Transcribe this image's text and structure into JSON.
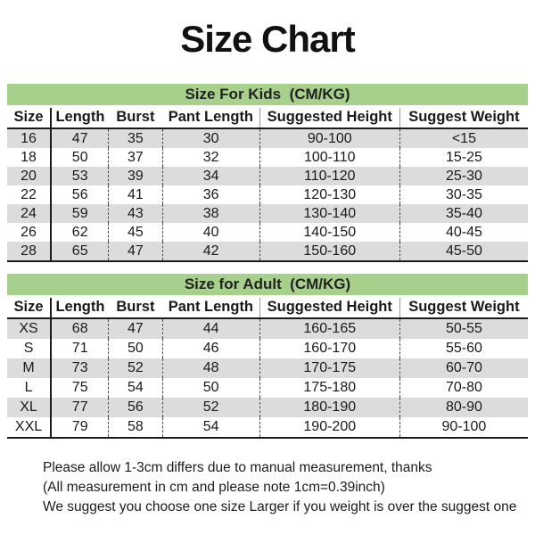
{
  "title": "Size Chart",
  "tables": [
    {
      "section_title": "Size For Kids  (CM/KG)",
      "columns": [
        "Size",
        "Length",
        "Burst",
        "Pant Length",
        "Suggested Height",
        "Suggest Weight"
      ],
      "rows": [
        [
          "16",
          "47",
          "35",
          "30",
          "90-100",
          "<15"
        ],
        [
          "18",
          "50",
          "37",
          "32",
          "100-110",
          "15-25"
        ],
        [
          "20",
          "53",
          "39",
          "34",
          "110-120",
          "25-30"
        ],
        [
          "22",
          "56",
          "41",
          "36",
          "120-130",
          "30-35"
        ],
        [
          "24",
          "59",
          "43",
          "38",
          "130-140",
          "35-40"
        ],
        [
          "26",
          "62",
          "45",
          "40",
          "140-150",
          "40-45"
        ],
        [
          "28",
          "65",
          "47",
          "42",
          "150-160",
          "45-50"
        ]
      ]
    },
    {
      "section_title": "Size for Adult  (CM/KG)",
      "columns": [
        "Size",
        "Length",
        "Burst",
        "Pant Length",
        "Suggested Height",
        "Suggest Weight"
      ],
      "rows": [
        [
          "XS",
          "68",
          "47",
          "44",
          "160-165",
          "50-55"
        ],
        [
          "S",
          "71",
          "50",
          "46",
          "160-170",
          "55-60"
        ],
        [
          "M",
          "73",
          "52",
          "48",
          "170-175",
          "60-70"
        ],
        [
          "L",
          "75",
          "54",
          "50",
          "175-180",
          "70-80"
        ],
        [
          "XL",
          "77",
          "56",
          "52",
          "180-190",
          "80-90"
        ],
        [
          "XXL",
          "79",
          "58",
          "54",
          "190-200",
          "90-100"
        ]
      ]
    }
  ],
  "footer": {
    "lines": [
      "Please allow 1-3cm differs due to manual measurement, thanks",
      "(All measurement in cm and please note 1cm=0.39inch)",
      "We suggest you choose one size Larger if you weight is over the suggest one"
    ]
  },
  "colors": {
    "section_header_bg": "#a8d08d",
    "row_alt_bg": "#dcdcdc",
    "text": "#1a1a1a"
  }
}
